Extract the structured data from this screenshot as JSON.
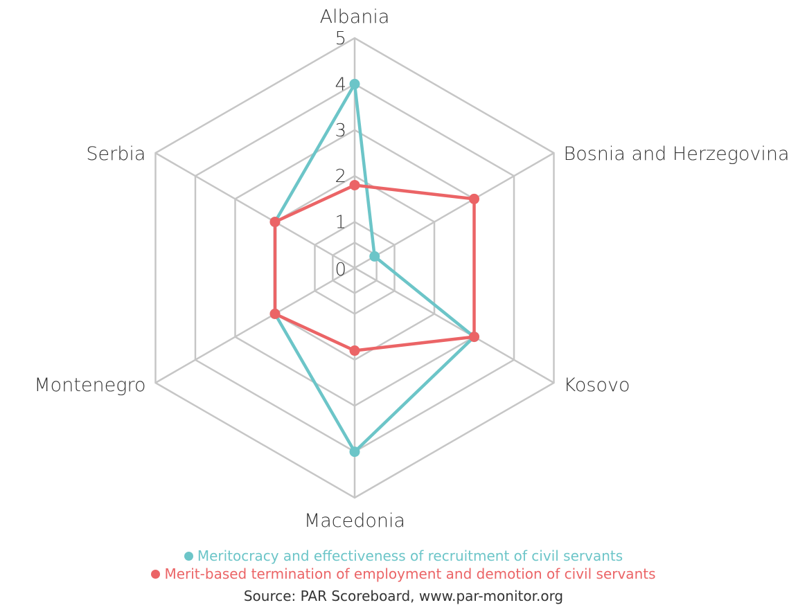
{
  "chart_data": {
    "type": "radar",
    "categories": [
      "Albania",
      "Bosnia and Herzegovina",
      "Kosovo",
      "Macedonia",
      "Montenegro",
      "Serbia"
    ],
    "ticks": [
      "0",
      "1",
      "2",
      "3",
      "4",
      "5"
    ],
    "rlim": [
      0,
      5
    ],
    "series": [
      {
        "name": "Meritocracy and effectiveness of recruitment of civil servants",
        "color": "#6cc5c8",
        "values": [
          4,
          0.5,
          3,
          4,
          2,
          2
        ]
      },
      {
        "name": "Merit-based termination of employment and demotion of civil servants",
        "color": "#eb6466",
        "values": [
          1.8,
          3,
          3,
          1.8,
          2,
          2
        ]
      }
    ],
    "legend_position": "bottom",
    "grid": true
  },
  "source": "Source:  PAR Scoreboard, www.par-monitor.org"
}
